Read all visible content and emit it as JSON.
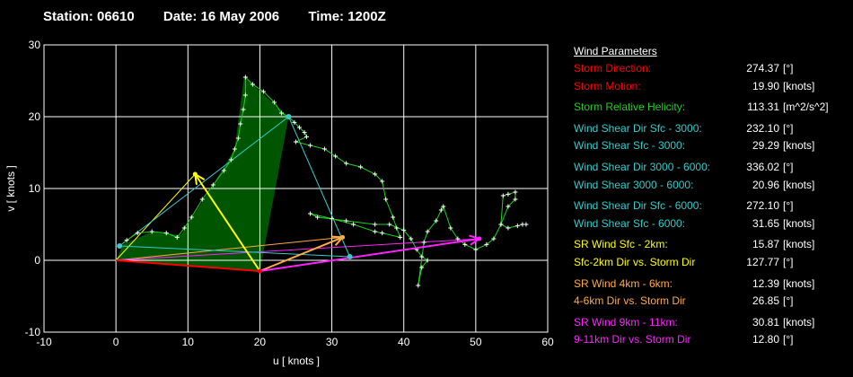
{
  "header": {
    "station": "Station: 06610",
    "date": "Date: 16 May 2006",
    "time": "Time: 1200Z"
  },
  "colors": {
    "red": "#ff0000",
    "green": "#22cc22",
    "cyan": "#33cccc",
    "yellow": "#ffff00",
    "orange": "#ffaa44",
    "magenta": "#ff22ff",
    "white": "#ffffff",
    "hodo_fill": "#005500"
  },
  "parameters": {
    "title": "Wind Parameters",
    "groups": [
      [
        {
          "label": "Storm Direction:",
          "value": "274.37",
          "unit": "[°]",
          "color": "#ff0000"
        },
        {
          "label": "Storm Motion:",
          "value": "19.90",
          "unit": "[knots]",
          "color": "#ff0000"
        }
      ],
      [
        {
          "label": "Storm Relative Helicity:",
          "value": "113.31",
          "unit": "[m^2/s^2]",
          "color": "#22cc22"
        }
      ],
      [
        {
          "label": "Wind Shear Dir Sfc - 3000:",
          "value": "232.10",
          "unit": "[°]",
          "color": "#33cccc"
        },
        {
          "label": "Wind Shear Sfc - 3000:",
          "value": "29.29",
          "unit": "[knots]",
          "color": "#33cccc"
        }
      ],
      [
        {
          "label": "Wind Shear Dir 3000 - 6000:",
          "value": "336.02",
          "unit": "[°]",
          "color": "#33cccc"
        },
        {
          "label": "Wind Shear 3000 - 6000:",
          "value": "20.96",
          "unit": "[knots]",
          "color": "#33cccc"
        }
      ],
      [
        {
          "label": "Wind Shear Dir Sfc - 6000:",
          "value": "272.10",
          "unit": "[°]",
          "color": "#33cccc"
        },
        {
          "label": "Wind Shear Sfc - 6000:",
          "value": "31.65",
          "unit": "[knots]",
          "color": "#33cccc"
        }
      ],
      [
        {
          "label": "SR Wind Sfc - 2km:",
          "value": "15.87",
          "unit": "[knots]",
          "color": "#ffff00"
        },
        {
          "label": "Sfc-2km Dir vs. Storm Dir",
          "value": "127.77",
          "unit": "[°]",
          "color": "#ffff00"
        }
      ],
      [
        {
          "label": "SR Wind 4km - 6km:",
          "value": "12.39",
          "unit": "[knots]",
          "color": "#ffaa44"
        },
        {
          "label": "4-6km Dir vs. Storm Dir",
          "value": "26.85",
          "unit": "[°]",
          "color": "#ffaa44"
        }
      ],
      [
        {
          "label": "SR Wind 9km - 11km:",
          "value": "30.81",
          "unit": "[knots]",
          "color": "#ff22ff"
        },
        {
          "label": "9-11km Dir vs. Storm Dir",
          "value": "12.80",
          "unit": "[°]",
          "color": "#ff22ff"
        }
      ]
    ]
  },
  "chart_data": {
    "type": "line",
    "title": "",
    "xlabel": "u  [ knots ]",
    "ylabel": "v  [ knots ]",
    "xlim": [
      -10,
      60
    ],
    "ylim": [
      -10,
      30
    ],
    "xticks": [
      "-10",
      "0",
      "10",
      "20",
      "30",
      "40",
      "50",
      "60"
    ],
    "yticks": [
      "-10",
      "0",
      "10",
      "20",
      "30"
    ],
    "grid": true,
    "hodograph": [
      [
        0.5,
        2
      ],
      [
        1.5,
        2.8
      ],
      [
        3,
        3.8
      ],
      [
        5,
        4
      ],
      [
        7,
        3.8
      ],
      [
        8.5,
        3.2
      ],
      [
        9.5,
        4.5
      ],
      [
        10.5,
        6
      ],
      [
        12,
        8.5
      ],
      [
        13.5,
        10.5
      ],
      [
        15,
        12.5
      ],
      [
        16,
        14
      ],
      [
        16.5,
        15.5
      ],
      [
        17,
        17
      ],
      [
        17.3,
        19
      ],
      [
        17.7,
        21
      ],
      [
        18,
        23
      ],
      [
        18,
        25.5
      ],
      [
        19,
        24.5
      ],
      [
        20.5,
        23.5
      ],
      [
        22,
        22
      ],
      [
        23,
        20.5
      ],
      [
        24,
        20
      ],
      [
        24.8,
        19.2
      ],
      [
        25.5,
        18.5
      ],
      [
        26.2,
        17.8
      ],
      [
        26.5,
        17.2
      ],
      [
        25,
        16.5
      ],
      [
        27,
        16
      ],
      [
        29,
        15.5
      ],
      [
        30.5,
        14.5
      ],
      [
        32,
        13.5
      ],
      [
        34,
        13
      ],
      [
        36,
        12
      ],
      [
        37,
        11
      ],
      [
        37.5,
        8.5
      ],
      [
        38.5,
        6
      ],
      [
        39,
        4.5
      ],
      [
        39.5,
        3.2
      ],
      [
        37,
        3.8
      ],
      [
        36,
        4
      ],
      [
        33,
        5
      ],
      [
        30,
        5.8
      ],
      [
        27,
        6.5
      ],
      [
        28,
        6
      ],
      [
        32,
        5.5
      ],
      [
        36,
        5
      ],
      [
        38,
        5
      ],
      [
        40,
        4.2
      ],
      [
        41,
        3
      ],
      [
        41.8,
        1.5
      ],
      [
        42.5,
        0.5
      ],
      [
        43.3,
        0
      ],
      [
        42.5,
        -1
      ],
      [
        42,
        -3.5
      ],
      [
        42.8,
        2.5
      ],
      [
        43.3,
        4
      ],
      [
        44.5,
        5.5
      ],
      [
        45.2,
        7
      ],
      [
        45.5,
        7.5
      ],
      [
        46.5,
        4.5
      ],
      [
        47.5,
        3
      ],
      [
        48.5,
        2.2
      ],
      [
        50,
        1.5
      ],
      [
        51.5,
        2.2
      ],
      [
        52.5,
        3
      ],
      [
        53.5,
        5
      ],
      [
        54.5,
        7.5
      ],
      [
        55.5,
        8.5
      ],
      [
        55.5,
        9.5
      ],
      [
        54.5,
        9.2
      ],
      [
        53.8,
        9
      ],
      [
        53.5,
        5
      ],
      [
        54.5,
        4.5
      ],
      [
        55.8,
        4.8
      ],
      [
        56.5,
        5
      ],
      [
        57,
        5
      ]
    ],
    "shaded_polygon": [
      [
        0,
        0
      ],
      [
        20,
        -1.5
      ],
      [
        24,
        20
      ],
      [
        17.8,
        25.5
      ],
      [
        16.5,
        15.5
      ],
      [
        13.5,
        10.5
      ],
      [
        9,
        3.5
      ],
      [
        5,
        4
      ],
      [
        1,
        2.2
      ]
    ],
    "storm_motion": {
      "from": [
        0,
        0
      ],
      "to": [
        20,
        -1.5
      ]
    },
    "shear_lines": [
      {
        "from": [
          0.5,
          2
        ],
        "to": [
          24,
          20
        ]
      },
      {
        "from": [
          24,
          20
        ],
        "to": [
          32.5,
          0.5
        ]
      },
      {
        "from": [
          0.5,
          2
        ],
        "to": [
          32.5,
          0.5
        ]
      }
    ],
    "shear_points": [
      [
        0.5,
        2
      ],
      [
        24,
        20
      ],
      [
        32.5,
        0.5
      ]
    ],
    "sr_vectors": [
      {
        "name": "sfc-2km",
        "from": [
          20,
          -1.5
        ],
        "to": [
          11,
          12
        ],
        "color": "#ffff00"
      },
      {
        "name": "4-6km",
        "from": [
          20,
          -1.5
        ],
        "to": [
          31.5,
          3.2
        ],
        "color": "#ffaa44"
      },
      {
        "name": "9-11km",
        "from": [
          20,
          -1.5
        ],
        "to": [
          50.5,
          3
        ],
        "color": "#ff22ff"
      }
    ],
    "helper_lines": [
      {
        "from": [
          0,
          0
        ],
        "to": [
          11,
          12
        ],
        "color": "#ffff00"
      },
      {
        "from": [
          0,
          0
        ],
        "to": [
          31.5,
          3.2
        ],
        "color": "#ffaa44"
      },
      {
        "from": [
          0,
          0
        ],
        "to": [
          50.5,
          3
        ],
        "color": "#ff22ff"
      }
    ]
  }
}
